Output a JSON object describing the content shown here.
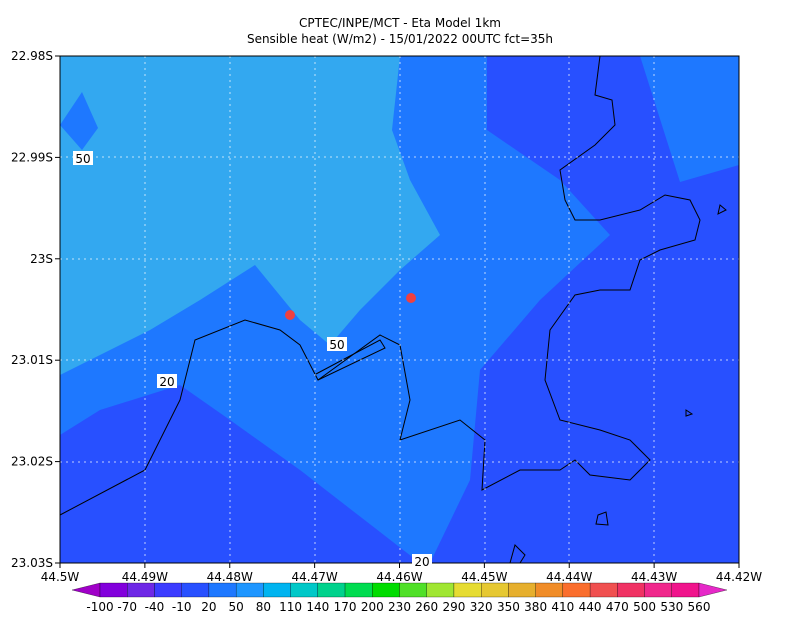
{
  "header": {
    "title": "CPTEC/INPE/MCT -  Eta Model 1km",
    "subtitle": "Sensible heat (W/m2) - 15/01/2022 00UTC fct=35h"
  },
  "x_axis": {
    "labels": [
      "44.5W",
      "44.49W",
      "44.48W",
      "44.47W",
      "44.46W",
      "44.45W",
      "44.44W",
      "44.43W",
      "44.42W"
    ]
  },
  "y_axis": {
    "labels": [
      "22.98S",
      "22.99S",
      "23S",
      "23.01S",
      "23.02S",
      "23.03S"
    ]
  },
  "contour_labels": [
    "50",
    "50",
    "20",
    "20"
  ],
  "colorbar": {
    "labels": [
      "-100",
      "-70",
      "-40",
      "-10",
      "20",
      "50",
      "80",
      "110",
      "140",
      "170",
      "200",
      "230",
      "260",
      "290",
      "320",
      "350",
      "380",
      "410",
      "440",
      "470",
      "500",
      "530",
      "560"
    ],
    "colors": [
      "#a000c8",
      "#8200dc",
      "#6e28e6",
      "#3c3cff",
      "#2850ff",
      "#1e78ff",
      "#1e96ff",
      "#00b4f0",
      "#00c8c8",
      "#00d28c",
      "#00dc50",
      "#00dc00",
      "#50e028",
      "#a0e632",
      "#e6dc32",
      "#e6c832",
      "#e6af2d",
      "#f08c28",
      "#fa6e2d",
      "#f05050",
      "#f03264",
      "#f0288c",
      "#f0148c",
      "#e628c8"
    ]
  }
}
